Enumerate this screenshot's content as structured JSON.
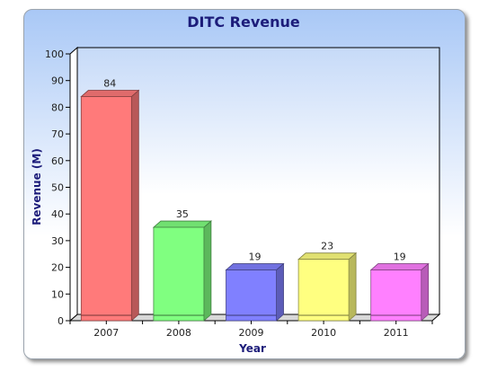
{
  "chart_data": {
    "type": "bar",
    "title": "DITC Revenue",
    "xlabel": "Year",
    "ylabel": "Revenue (M)",
    "categories": [
      "2007",
      "2008",
      "2009",
      "2010",
      "2011"
    ],
    "values": [
      84,
      35,
      19,
      23,
      19
    ],
    "data_labels": [
      "84",
      "35",
      "19",
      "23",
      "19"
    ],
    "yticks": [
      "0",
      "10",
      "20",
      "30",
      "40",
      "50",
      "60",
      "70",
      "80",
      "90",
      "100"
    ],
    "ylim": [
      0,
      100
    ],
    "grid": false,
    "legend": "none",
    "bar_colors": [
      "#ff7a7a",
      "#80ff80",
      "#8080ff",
      "#ffff80",
      "#ff80ff"
    ]
  }
}
